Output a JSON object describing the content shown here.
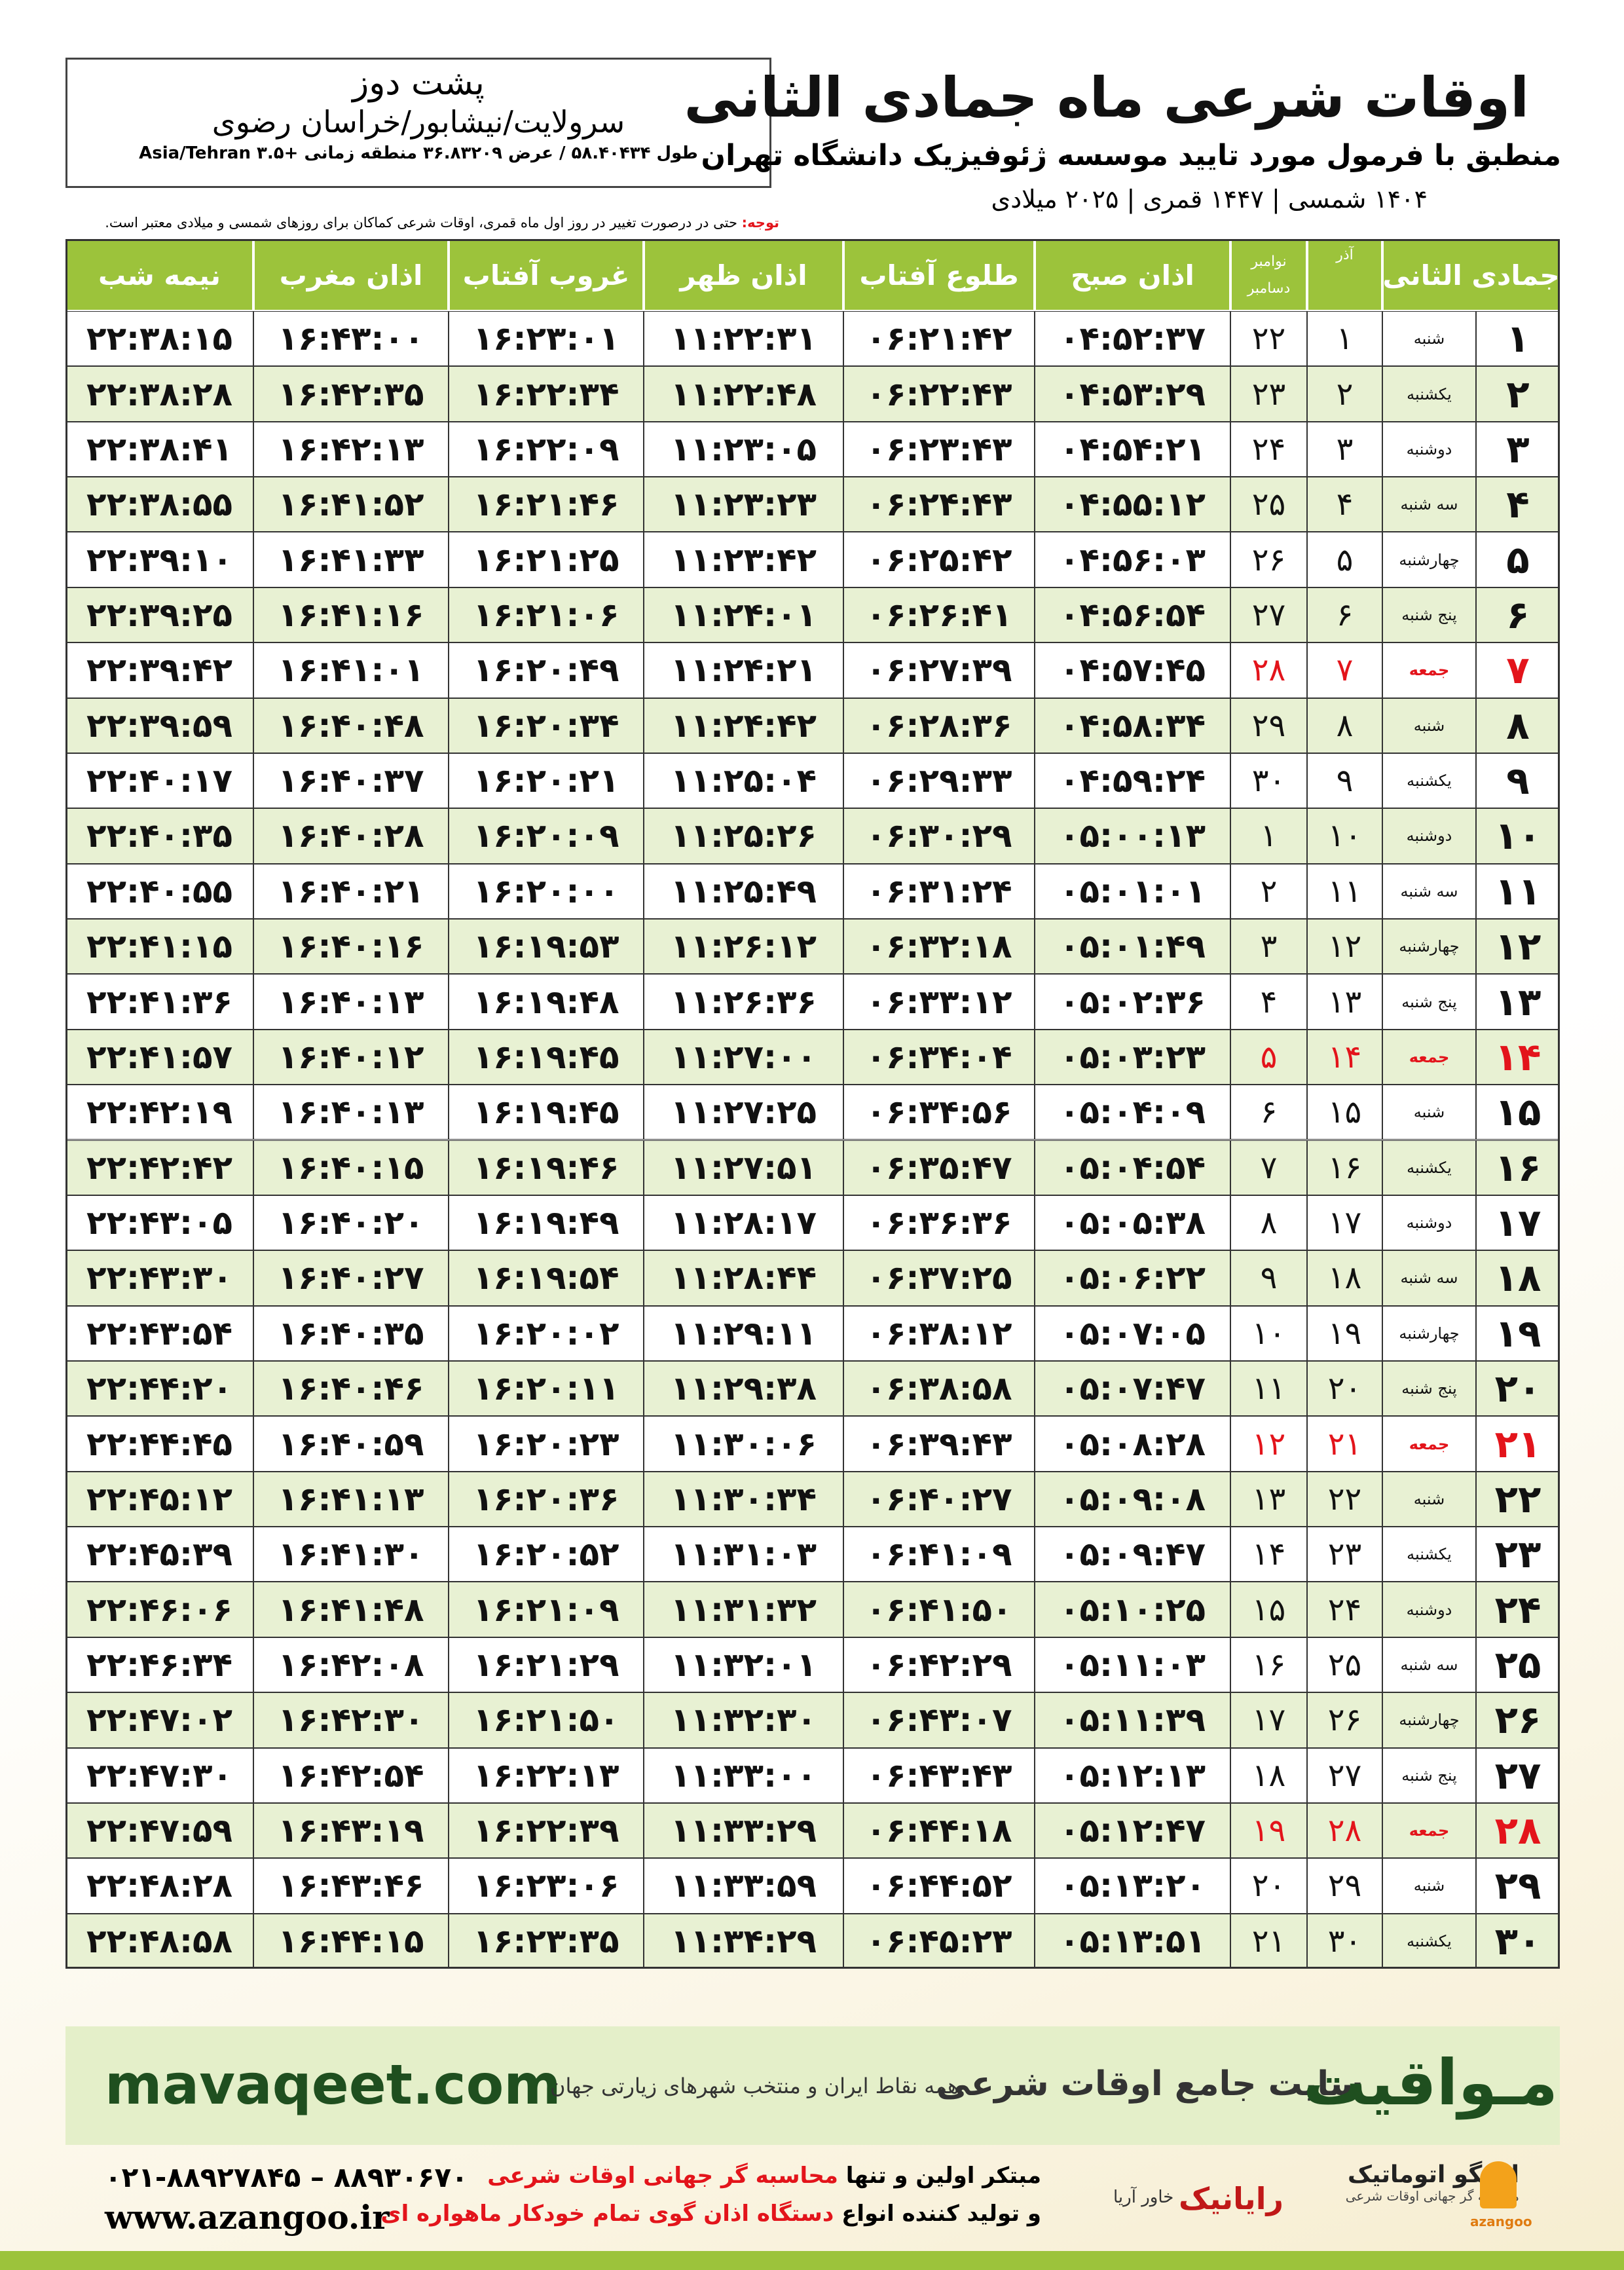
{
  "header": {
    "title": "اوقات شرعی ماه جمادی الثانی",
    "subtitle": "منطبق با فرمول مورد تایید موسسه ژئوفیزیک دانشگاه تهران",
    "dates": "۱۴۰۴ شمسی | ۱۴۴۷ قمری | ۲۰۲۵ میلادی",
    "note_label": "توجه:",
    "note": "حتی در درصورت تغییر در روز اول ماه قمری، اوقات شرعی کماکان برای روزهای شمسی و میلادی معتبر است."
  },
  "location": {
    "name": "پشت دوز",
    "region": "سرولایت/نیشابور/خراسان رضوی",
    "coords": "طول ۵۸.۴۰۴۳۴ / عرض ۳۶.۸۳۲۰۹ منطقه زمانی +۳.۵ Asia/Tehran"
  },
  "table": {
    "columns": [
      "جمادی الثانی",
      "آذر",
      [
        "نوامبر",
        "دسامبر"
      ],
      "اذان صبح",
      "طلوع آفتاب",
      "اذان ظهر",
      "غروب آفتاب",
      "اذان مغرب",
      "نیمه شب"
    ],
    "highlighted_rows": [
      6,
      13,
      20,
      27
    ],
    "highlight_color": "#e3141b",
    "rows": [
      [
        "۱",
        "شنبه",
        "۱",
        "۲۲",
        "۰۴:۵۲:۳۷",
        "۰۶:۲۱:۴۲",
        "۱۱:۲۲:۳۱",
        "۱۶:۲۳:۰۱",
        "۱۶:۴۳:۰۰",
        "۲۲:۳۸:۱۵"
      ],
      [
        "۲",
        "یکشنبه",
        "۲",
        "۲۳",
        "۰۴:۵۳:۲۹",
        "۰۶:۲۲:۴۳",
        "۱۱:۲۲:۴۸",
        "۱۶:۲۲:۳۴",
        "۱۶:۴۲:۳۵",
        "۲۲:۳۸:۲۸"
      ],
      [
        "۳",
        "دوشنبه",
        "۳",
        "۲۴",
        "۰۴:۵۴:۲۱",
        "۰۶:۲۳:۴۳",
        "۱۱:۲۳:۰۵",
        "۱۶:۲۲:۰۹",
        "۱۶:۴۲:۱۳",
        "۲۲:۳۸:۴۱"
      ],
      [
        "۴",
        "سه شنبه",
        "۴",
        "۲۵",
        "۰۴:۵۵:۱۲",
        "۰۶:۲۴:۴۳",
        "۱۱:۲۳:۲۳",
        "۱۶:۲۱:۴۶",
        "۱۶:۴۱:۵۲",
        "۲۲:۳۸:۵۵"
      ],
      [
        "۵",
        "چهارشنبه",
        "۵",
        "۲۶",
        "۰۴:۵۶:۰۳",
        "۰۶:۲۵:۴۲",
        "۱۱:۲۳:۴۲",
        "۱۶:۲۱:۲۵",
        "۱۶:۴۱:۳۳",
        "۲۲:۳۹:۱۰"
      ],
      [
        "۶",
        "پنج شنبه",
        "۶",
        "۲۷",
        "۰۴:۵۶:۵۴",
        "۰۶:۲۶:۴۱",
        "۱۱:۲۴:۰۱",
        "۱۶:۲۱:۰۶",
        "۱۶:۴۱:۱۶",
        "۲۲:۳۹:۲۵"
      ],
      [
        "۷",
        "جمعه",
        "۷",
        "۲۸",
        "۰۴:۵۷:۴۵",
        "۰۶:۲۷:۳۹",
        "۱۱:۲۴:۲۱",
        "۱۶:۲۰:۴۹",
        "۱۶:۴۱:۰۱",
        "۲۲:۳۹:۴۲"
      ],
      [
        "۸",
        "شنبه",
        "۸",
        "۲۹",
        "۰۴:۵۸:۳۴",
        "۰۶:۲۸:۳۶",
        "۱۱:۲۴:۴۲",
        "۱۶:۲۰:۳۴",
        "۱۶:۴۰:۴۸",
        "۲۲:۳۹:۵۹"
      ],
      [
        "۹",
        "یکشنبه",
        "۹",
        "۳۰",
        "۰۴:۵۹:۲۴",
        "۰۶:۲۹:۳۳",
        "۱۱:۲۵:۰۴",
        "۱۶:۲۰:۲۱",
        "۱۶:۴۰:۳۷",
        "۲۲:۴۰:۱۷"
      ],
      [
        "۱۰",
        "دوشنبه",
        "۱۰",
        "۱",
        "۰۵:۰۰:۱۳",
        "۰۶:۳۰:۲۹",
        "۱۱:۲۵:۲۶",
        "۱۶:۲۰:۰۹",
        "۱۶:۴۰:۲۸",
        "۲۲:۴۰:۳۵"
      ],
      [
        "۱۱",
        "سه شنبه",
        "۱۱",
        "۲",
        "۰۵:۰۱:۰۱",
        "۰۶:۳۱:۲۴",
        "۱۱:۲۵:۴۹",
        "۱۶:۲۰:۰۰",
        "۱۶:۴۰:۲۱",
        "۲۲:۴۰:۵۵"
      ],
      [
        "۱۲",
        "چهارشنبه",
        "۱۲",
        "۳",
        "۰۵:۰۱:۴۹",
        "۰۶:۳۲:۱۸",
        "۱۱:۲۶:۱۲",
        "۱۶:۱۹:۵۳",
        "۱۶:۴۰:۱۶",
        "۲۲:۴۱:۱۵"
      ],
      [
        "۱۳",
        "پنج شنبه",
        "۱۳",
        "۴",
        "۰۵:۰۲:۳۶",
        "۰۶:۳۳:۱۲",
        "۱۱:۲۶:۳۶",
        "۱۶:۱۹:۴۸",
        "۱۶:۴۰:۱۳",
        "۲۲:۴۱:۳۶"
      ],
      [
        "۱۴",
        "جمعه",
        "۱۴",
        "۵",
        "۰۵:۰۳:۲۳",
        "۰۶:۳۴:۰۴",
        "۱۱:۲۷:۰۰",
        "۱۶:۱۹:۴۵",
        "۱۶:۴۰:۱۲",
        "۲۲:۴۱:۵۷"
      ],
      [
        "۱۵",
        "شنبه",
        "۱۵",
        "۶",
        "۰۵:۰۴:۰۹",
        "۰۶:۳۴:۵۶",
        "۱۱:۲۷:۲۵",
        "۱۶:۱۹:۴۵",
        "۱۶:۴۰:۱۳",
        "۲۲:۴۲:۱۹"
      ],
      [
        "۱۶",
        "یکشنبه",
        "۱۶",
        "۷",
        "۰۵:۰۴:۵۴",
        "۰۶:۳۵:۴۷",
        "۱۱:۲۷:۵۱",
        "۱۶:۱۹:۴۶",
        "۱۶:۴۰:۱۵",
        "۲۲:۴۲:۴۲"
      ],
      [
        "۱۷",
        "دوشنبه",
        "۱۷",
        "۸",
        "۰۵:۰۵:۳۸",
        "۰۶:۳۶:۳۶",
        "۱۱:۲۸:۱۷",
        "۱۶:۱۹:۴۹",
        "۱۶:۴۰:۲۰",
        "۲۲:۴۳:۰۵"
      ],
      [
        "۱۸",
        "سه شنبه",
        "۱۸",
        "۹",
        "۰۵:۰۶:۲۲",
        "۰۶:۳۷:۲۵",
        "۱۱:۲۸:۴۴",
        "۱۶:۱۹:۵۴",
        "۱۶:۴۰:۲۷",
        "۲۲:۴۳:۳۰"
      ],
      [
        "۱۹",
        "چهارشنبه",
        "۱۹",
        "۱۰",
        "۰۵:۰۷:۰۵",
        "۰۶:۳۸:۱۲",
        "۱۱:۲۹:۱۱",
        "۱۶:۲۰:۰۲",
        "۱۶:۴۰:۳۵",
        "۲۲:۴۳:۵۴"
      ],
      [
        "۲۰",
        "پنج شنبه",
        "۲۰",
        "۱۱",
        "۰۵:۰۷:۴۷",
        "۰۶:۳۸:۵۸",
        "۱۱:۲۹:۳۸",
        "۱۶:۲۰:۱۱",
        "۱۶:۴۰:۴۶",
        "۲۲:۴۴:۲۰"
      ],
      [
        "۲۱",
        "جمعه",
        "۲۱",
        "۱۲",
        "۰۵:۰۸:۲۸",
        "۰۶:۳۹:۴۳",
        "۱۱:۳۰:۰۶",
        "۱۶:۲۰:۲۳",
        "۱۶:۴۰:۵۹",
        "۲۲:۴۴:۴۵"
      ],
      [
        "۲۲",
        "شنبه",
        "۲۲",
        "۱۳",
        "۰۵:۰۹:۰۸",
        "۰۶:۴۰:۲۷",
        "۱۱:۳۰:۳۴",
        "۱۶:۲۰:۳۶",
        "۱۶:۴۱:۱۳",
        "۲۲:۴۵:۱۲"
      ],
      [
        "۲۳",
        "یکشنبه",
        "۲۳",
        "۱۴",
        "۰۵:۰۹:۴۷",
        "۰۶:۴۱:۰۹",
        "۱۱:۳۱:۰۳",
        "۱۶:۲۰:۵۲",
        "۱۶:۴۱:۳۰",
        "۲۲:۴۵:۳۹"
      ],
      [
        "۲۴",
        "دوشنبه",
        "۲۴",
        "۱۵",
        "۰۵:۱۰:۲۵",
        "۰۶:۴۱:۵۰",
        "۱۱:۳۱:۳۲",
        "۱۶:۲۱:۰۹",
        "۱۶:۴۱:۴۸",
        "۲۲:۴۶:۰۶"
      ],
      [
        "۲۵",
        "سه شنبه",
        "۲۵",
        "۱۶",
        "۰۵:۱۱:۰۳",
        "۰۶:۴۲:۲۹",
        "۱۱:۳۲:۰۱",
        "۱۶:۲۱:۲۹",
        "۱۶:۴۲:۰۸",
        "۲۲:۴۶:۳۴"
      ],
      [
        "۲۶",
        "چهارشنبه",
        "۲۶",
        "۱۷",
        "۰۵:۱۱:۳۹",
        "۰۶:۴۳:۰۷",
        "۱۱:۳۲:۳۰",
        "۱۶:۲۱:۵۰",
        "۱۶:۴۲:۳۰",
        "۲۲:۴۷:۰۲"
      ],
      [
        "۲۷",
        "پنج شنبه",
        "۲۷",
        "۱۸",
        "۰۵:۱۲:۱۳",
        "۰۶:۴۳:۴۳",
        "۱۱:۳۳:۰۰",
        "۱۶:۲۲:۱۳",
        "۱۶:۴۲:۵۴",
        "۲۲:۴۷:۳۰"
      ],
      [
        "۲۸",
        "جمعه",
        "۲۸",
        "۱۹",
        "۰۵:۱۲:۴۷",
        "۰۶:۴۴:۱۸",
        "۱۱:۳۳:۲۹",
        "۱۶:۲۲:۳۹",
        "۱۶:۴۳:۱۹",
        "۲۲:۴۷:۵۹"
      ],
      [
        "۲۹",
        "شنبه",
        "۲۹",
        "۲۰",
        "۰۵:۱۳:۲۰",
        "۰۶:۴۴:۵۲",
        "۱۱:۳۳:۵۹",
        "۱۶:۲۳:۰۶",
        "۱۶:۴۳:۴۶",
        "۲۲:۴۸:۲۸"
      ],
      [
        "۳۰",
        "یکشنبه",
        "۳۰",
        "۲۱",
        "۰۵:۱۳:۵۱",
        "۰۶:۴۵:۲۳",
        "۱۱:۳۴:۲۹",
        "۱۶:۲۳:۳۵",
        "۱۶:۴۴:۱۵",
        "۲۲:۴۸:۵۸"
      ]
    ]
  },
  "banner": {
    "brand": "مـواقیت",
    "site_name": "سایت جامع اوقات شرعی",
    "site_desc": "همه نقاط ایران و منتخب شهرهای زیارتی جهان",
    "url": "mavaqeet.com"
  },
  "contact": {
    "phones": "۰۲۱-۸۸۹۲۷۸۴۵ – ۸۸۹۳۰۶۷۰",
    "website": "www.azangoo.ir",
    "line1_a": "مبتکر اولین و تنها",
    "line1_b": "محاسبه گر جهانی اوقات شرعی",
    "line2_a": "و تولید کننده انواع",
    "line2_b": "دستگاه اذان گوی تمام خودکار ماهواره ای",
    "rayanik": "رایانیک",
    "khavar": "خاور آریا",
    "azangoo_fa": "اذانگو اتوماتیک",
    "azangoo_sub": "محاسبه گر جهانی اوقات شرعی",
    "azangoo_en": "azangoo"
  }
}
